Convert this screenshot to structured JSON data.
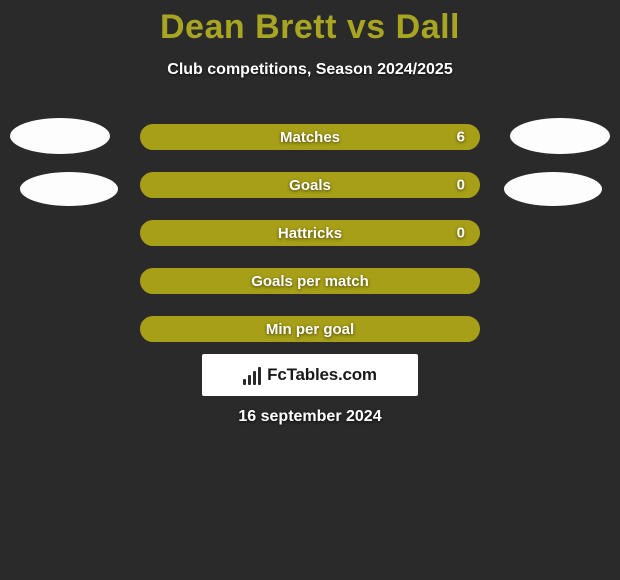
{
  "title": "Dean Brett vs Dall",
  "subtitle": "Club competitions, Season 2024/2025",
  "colors": {
    "background": "#2a2a2a",
    "title": "#a8a522",
    "bar_fill": "#a79f17",
    "bar_fill_alt": "#a79f17",
    "text": "#ffffff",
    "avatar": "#fdfdfd",
    "logo_bg": "#ffffff",
    "logo_fg": "#1a1a1a"
  },
  "typography": {
    "title_fontsize": 34,
    "subtitle_fontsize": 16,
    "stat_fontsize": 15,
    "date_fontsize": 16,
    "font_family": "Arial"
  },
  "avatars": {
    "left1": true,
    "right1": true,
    "left2": true,
    "right2": true
  },
  "stats": [
    {
      "label": "Matches",
      "value": "6",
      "has_value": true
    },
    {
      "label": "Goals",
      "value": "0",
      "has_value": true
    },
    {
      "label": "Hattricks",
      "value": "0",
      "has_value": true
    },
    {
      "label": "Goals per match",
      "value": "",
      "has_value": false
    },
    {
      "label": "Min per goal",
      "value": "",
      "has_value": false
    }
  ],
  "logo": {
    "text": "FcTables.com"
  },
  "date": "16 september 2024"
}
